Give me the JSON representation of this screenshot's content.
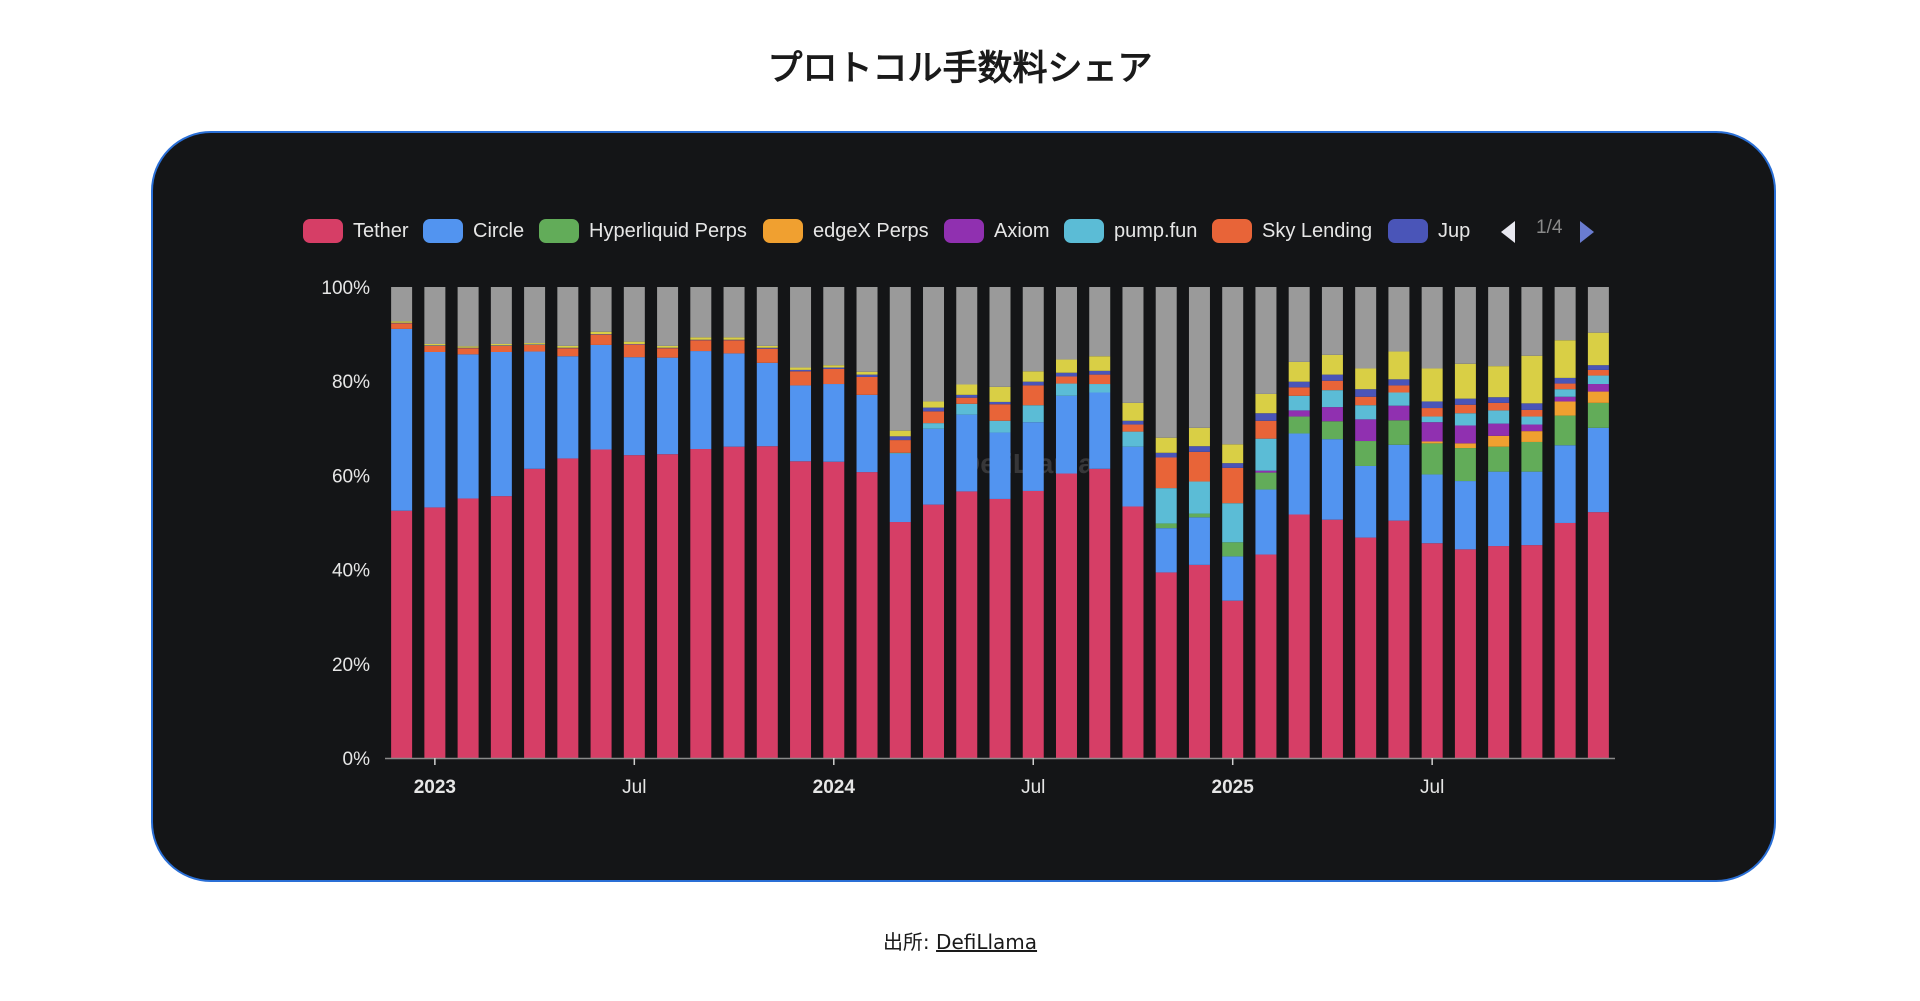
{
  "title": "プロトコル手数料シェア",
  "legend": {
    "items": [
      {
        "label": "Tether",
        "color": "#d63e66"
      },
      {
        "label": "Circle",
        "color": "#5294f0"
      },
      {
        "label": "Hyperliquid Perps",
        "color": "#62ac59"
      },
      {
        "label": "edgeX Perps",
        "color": "#f0a030"
      },
      {
        "label": "Axiom",
        "color": "#9030b0"
      },
      {
        "label": "pump.fun",
        "color": "#5bbcd6"
      },
      {
        "label": "Sky Lending",
        "color": "#e86438"
      },
      {
        "label": "Jup",
        "color": "#4a55b8"
      }
    ],
    "page": "1/4",
    "prev_icon": "triangle-left-icon",
    "next_icon": "triangle-right-icon"
  },
  "watermark": "DefiLlama",
  "footer": {
    "prefix": "出所: ",
    "link": "DefiLlama"
  },
  "chart_data": {
    "type": "bar",
    "stacked": true,
    "normalized": true,
    "title": "",
    "xlabel": "",
    "ylabel": "",
    "ylim": [
      0,
      100
    ],
    "y_ticks": [
      "0%",
      "20%",
      "40%",
      "60%",
      "80%",
      "100%"
    ],
    "x_ticks": [
      {
        "label": "2023",
        "index": 1,
        "bold": true
      },
      {
        "label": "Jul",
        "index": 7,
        "bold": false
      },
      {
        "label": "2024",
        "index": 13,
        "bold": true
      },
      {
        "label": "Jul",
        "index": 19,
        "bold": false
      },
      {
        "label": "2025",
        "index": 25,
        "bold": true
      },
      {
        "label": "Jul",
        "index": 31,
        "bold": false
      }
    ],
    "categories": [
      "2022-12",
      "2023-01",
      "2023-02",
      "2023-03",
      "2023-04",
      "2023-05",
      "2023-06",
      "2023-07",
      "2023-08",
      "2023-09",
      "2023-10",
      "2023-11",
      "2023-12",
      "2024-01",
      "2024-02",
      "2024-03",
      "2024-04",
      "2024-05",
      "2024-06",
      "2024-07",
      "2024-08",
      "2024-09",
      "2024-10",
      "2024-11",
      "2024-12",
      "2025-01",
      "2025-02",
      "2025-03",
      "2025-04",
      "2025-05",
      "2025-06",
      "2025-07",
      "2025-08",
      "2025-09",
      "2025-10",
      "2025-11",
      "2025-12"
    ],
    "grid": false,
    "legend_position": "top",
    "series": [
      {
        "name": "Tether",
        "color": "#d63e66",
        "values": [
          52.5,
          53.2,
          55.1,
          55.6,
          61.4,
          63.6,
          65.5,
          64.3,
          64.5,
          65.6,
          66.1,
          66.2,
          63,
          62.9,
          60.7,
          50.1,
          53.8,
          56.6,
          55,
          56.7,
          60.4,
          61.4,
          53.4,
          39.4,
          41,
          33.4,
          43.2,
          51.7,
          50.6,
          46.8,
          50.4,
          45.6,
          44.3,
          45,
          45.2,
          49.9,
          52.2
        ]
      },
      {
        "name": "Circle",
        "color": "#5294f0",
        "values": [
          38.6,
          33,
          30.6,
          30.6,
          24.9,
          21.7,
          22.2,
          20.8,
          20.5,
          20.8,
          19.8,
          17.7,
          16.1,
          16.5,
          16.4,
          14.5,
          16.1,
          16.3,
          14.1,
          14.6,
          16.5,
          16.2,
          12.7,
          9.4,
          10.1,
          9.4,
          13.8,
          17.2,
          17.1,
          15.2,
          16.1,
          14.6,
          14.5,
          15.8,
          15.6,
          16.5,
          17.9
        ]
      },
      {
        "name": "Hyperliquid Perps",
        "color": "#62ac59",
        "values": [
          0,
          0,
          0,
          0,
          0,
          0,
          0,
          0,
          0,
          0,
          0,
          0,
          0,
          0,
          0,
          0,
          0,
          0,
          0,
          0,
          0,
          0,
          0,
          1,
          0.8,
          3,
          3.6,
          3.6,
          3.8,
          5.3,
          5.2,
          6.6,
          7,
          5.3,
          6.3,
          6.3,
          5.3
        ]
      },
      {
        "name": "edgeX Perps",
        "color": "#f0a030",
        "values": [
          0,
          0,
          0,
          0,
          0,
          0,
          0,
          0,
          0,
          0,
          0,
          0,
          0,
          0,
          0,
          0,
          0,
          0,
          0,
          0,
          0,
          0,
          0,
          0,
          0,
          0,
          0,
          0,
          0,
          0,
          0,
          0.4,
          1,
          2.3,
          2.3,
          3,
          2.4
        ]
      },
      {
        "name": "Axiom",
        "color": "#9030b0",
        "values": [
          0,
          0,
          0,
          0,
          0,
          0,
          0,
          0,
          0,
          0,
          0,
          0,
          0,
          0,
          0,
          0,
          0,
          0,
          0,
          0,
          0,
          0,
          0,
          0,
          0,
          0,
          0.4,
          1.3,
          3,
          4.6,
          3.1,
          4.1,
          3.8,
          2.6,
          1.4,
          1,
          1.6
        ]
      },
      {
        "name": "pump.fun",
        "color": "#5bbcd6",
        "values": [
          0,
          0,
          0,
          0,
          0,
          0,
          0,
          0,
          0,
          0,
          0,
          0,
          0,
          0,
          0,
          0.2,
          1.2,
          2.3,
          2.5,
          3.6,
          2.6,
          1.8,
          3.2,
          7.5,
          6.8,
          8.3,
          6.8,
          3.1,
          3.6,
          3,
          2.8,
          1.2,
          2.6,
          2.8,
          1.7,
          1.6,
          1.8
        ]
      },
      {
        "name": "Sky Lending",
        "color": "#e86438",
        "values": [
          1.2,
          1.3,
          1.3,
          1.3,
          1.4,
          1.7,
          2.2,
          2.7,
          2,
          2.3,
          2.8,
          3,
          3,
          3.2,
          3.8,
          2.7,
          2.5,
          1.3,
          3.5,
          4.2,
          1.5,
          2,
          1.5,
          6.5,
          6.3,
          7.5,
          3.8,
          1.8,
          2,
          1.8,
          1.5,
          1.8,
          1.8,
          1.6,
          1.4,
          1.2,
          1.2
        ]
      },
      {
        "name": "Jup",
        "color": "#4a55b8",
        "values": [
          0.1,
          0.1,
          0.1,
          0.1,
          0.1,
          0.1,
          0.1,
          0.1,
          0.1,
          0.1,
          0.1,
          0.2,
          0.3,
          0.3,
          0.5,
          0.8,
          0.8,
          0.6,
          0.5,
          0.8,
          0.8,
          0.8,
          0.8,
          1,
          1.2,
          1,
          1.6,
          1.2,
          1.3,
          1.6,
          1.3,
          1.4,
          1.3,
          1.2,
          1.4,
          1.2,
          1
        ]
      },
      {
        "color": "#d9cf45",
        "values": [
          0.3,
          0.3,
          0.3,
          0.3,
          0.3,
          0.4,
          0.5,
          0.5,
          0.4,
          0.5,
          0.5,
          0.4,
          0.5,
          0.5,
          0.6,
          1.2,
          1.3,
          2.2,
          3.2,
          2.2,
          2.8,
          3.1,
          3.8,
          3.2,
          3.9,
          4,
          4.1,
          4.2,
          4.2,
          4.4,
          5.9,
          7,
          7.4,
          6.6,
          10.1,
          8,
          6.9
        ]
      },
      {
        "color": "#9a9a9a",
        "values": [
          7.3,
          12.1,
          12.6,
          12.1,
          11.9,
          12.5,
          9.5,
          11.6,
          12.5,
          10.7,
          10.7,
          12.5,
          17.1,
          16.6,
          18,
          30.5,
          24.3,
          20.7,
          21.2,
          17.9,
          15.4,
          14.7,
          24.6,
          32,
          29.9,
          33.4,
          22.7,
          15.9,
          14.4,
          17.3,
          13.7,
          17.3,
          16.3,
          16.8,
          14.6,
          11.3,
          9.7
        ]
      }
    ]
  }
}
